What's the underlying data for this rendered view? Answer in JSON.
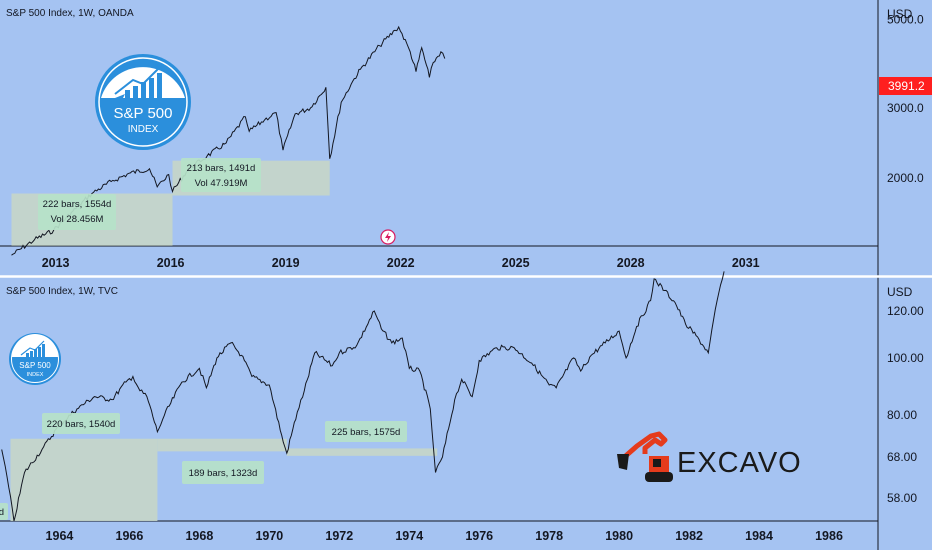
{
  "colors": {
    "background": "#a5c3f2",
    "price_line": "#131722",
    "price_tag": "#ff1f1f",
    "annotation_box": "#b6e2c9",
    "range_box": "#c6d6c8",
    "logo_blue": "#2b8fdc",
    "excavator_orange": "#e53b1c",
    "separator": "#ffffff"
  },
  "top": {
    "title": "S&P 500 Index, 1W, OANDA",
    "currency": "USD",
    "price_labels": [
      "5000.0",
      "3000.0",
      "2000.0"
    ],
    "last_price": "3991.2",
    "x_labels": [
      "2013",
      "2016",
      "2019",
      "2022",
      "2025",
      "2028",
      "2031"
    ],
    "annotations": [
      {
        "line1": "222 bars, 1554d",
        "line2": "Vol 28.456M"
      },
      {
        "line1": "213 bars, 1491d",
        "line2": "Vol 47.919M"
      }
    ],
    "logo": {
      "line1": "S&P 500",
      "line2": "INDEX",
      "icon": "bar-chart-growth-icon"
    },
    "event_icon": "lightning-icon"
  },
  "bottom": {
    "title": "S&P 500 Index, 1W, TVC",
    "currency": "USD",
    "price_labels": [
      "120.00",
      "100.00",
      "80.00",
      "68.00",
      "58.00"
    ],
    "x_labels": [
      "1964",
      "1966",
      "1968",
      "1970",
      "1972",
      "1974",
      "1976",
      "1978",
      "1980",
      "1982",
      "1984",
      "1986"
    ],
    "annotations": [
      {
        "line1": "220 bars, 1540d"
      },
      {
        "line1": "189 bars, 1323d"
      },
      {
        "line1": "225 bars, 1575d"
      },
      {
        "line1": "d"
      }
    ],
    "logo": {
      "line1": "S&P 500",
      "line2": "INDEX",
      "icon": "bar-chart-growth-icon"
    },
    "watermark": {
      "text": "EXCAVO",
      "icon": "excavator-icon"
    }
  },
  "chart_data": [
    {
      "type": "line",
      "title": "S&P 500 Index, 1W, OANDA",
      "ylabel": "USD",
      "log_scale": true,
      "ylim": [
        1350,
        5600
      ],
      "xlim": [
        2011.6,
        2034.5
      ],
      "grid": false,
      "last_price": 3991.2,
      "series": [
        {
          "x": [
            2011.9,
            2012.5,
            2013.0,
            2013.5,
            2014.0,
            2014.5,
            2015.0,
            2015.5,
            2015.7,
            2016.0,
            2016.1,
            2016.5,
            2017.0,
            2017.5,
            2018.0,
            2018.1,
            2018.5,
            2018.8,
            2018.98,
            2019.3,
            2019.7,
            2020.1,
            2020.2,
            2020.5,
            2020.8,
            2021.0,
            2021.5,
            2021.9,
            2022.0,
            2022.3,
            2022.45,
            2022.6,
            2022.8,
            2022.9,
            2023.1,
            2023.2
          ],
          "y": [
            1280,
            1400,
            1480,
            1650,
            1830,
            1960,
            2060,
            2110,
            1900,
            2040,
            1850,
            2100,
            2270,
            2450,
            2850,
            2620,
            2800,
            2920,
            2350,
            2900,
            3000,
            3380,
            2237,
            3100,
            3500,
            3750,
            4300,
            4700,
            4790,
            4150,
            3700,
            4250,
            3580,
            3900,
            4150,
            3991
          ]
        }
      ],
      "annotations": [
        {
          "text": "222 bars, 1554d / Vol 28.456M",
          "x": [
            2011.9,
            2016.1
          ],
          "y": [
            1400,
            1850
          ]
        },
        {
          "text": "213 bars, 1491d / Vol 47.919M",
          "x": [
            2016.1,
            2020.2
          ],
          "y": [
            1850,
            2237
          ]
        }
      ]
    },
    {
      "type": "line",
      "title": "S&P 500 Index, 1W, TVC",
      "ylabel": "USD",
      "log_scale": true,
      "ylim": [
        53,
        137
      ],
      "xlim": [
        1962.3,
        1987.4
      ],
      "grid": false,
      "series": [
        {
          "x": [
            1962.35,
            1962.5,
            1962.7,
            1963.0,
            1963.5,
            1964.0,
            1964.5,
            1965.0,
            1965.5,
            1965.9,
            1966.1,
            1966.3,
            1966.5,
            1966.8,
            1967.0,
            1967.5,
            1968.0,
            1968.2,
            1968.5,
            1968.9,
            1969.2,
            1969.5,
            1970.0,
            1970.4,
            1970.5,
            1970.8,
            1971.0,
            1971.3,
            1971.8,
            1972.0,
            1972.5,
            1973.0,
            1973.2,
            1973.5,
            1973.8,
            1974.0,
            1974.3,
            1974.6,
            1974.75,
            1974.95,
            1975.3,
            1975.5,
            1975.8,
            1976.0,
            1976.5,
            1977.0,
            1977.5,
            1978.0,
            1978.2,
            1978.7,
            1978.9,
            1979.2,
            1979.6,
            1980.0,
            1980.2,
            1980.5,
            1980.9,
            1981.0,
            1981.3,
            1981.6,
            1981.9,
            1982.2,
            1982.55,
            1982.8,
            1983.0
          ],
          "y": [
            70,
            63,
            53,
            64,
            70,
            77,
            82,
            86,
            85,
            91,
            93,
            88,
            86,
            75,
            80,
            91,
            96,
            89,
            100,
            106,
            101,
            93,
            90,
            72,
            69,
            81,
            88,
            102,
            97,
            102,
            105,
            120,
            112,
            106,
            108,
            96,
            95,
            82,
            64,
            68,
            85,
            92,
            86,
            99,
            104,
            104,
            98,
            90,
            89,
            100,
            95,
            101,
            106,
            111,
            100,
            113,
            125,
            136,
            130,
            124,
            114,
            109,
            102,
            125,
            140
          ]
        }
      ],
      "annotations": [
        {
          "text": "220 bars, 1540d",
          "x": [
            1962.6,
            1966.8
          ],
          "y": [
            53,
            73
          ]
        },
        {
          "text": "189 bars, 1323d",
          "x": [
            1966.8,
            1970.5
          ],
          "y": [
            69,
            73
          ]
        },
        {
          "text": "225 bars, 1575d",
          "x": [
            1970.5,
            1974.8
          ],
          "y": [
            68,
            70
          ]
        }
      ]
    }
  ]
}
